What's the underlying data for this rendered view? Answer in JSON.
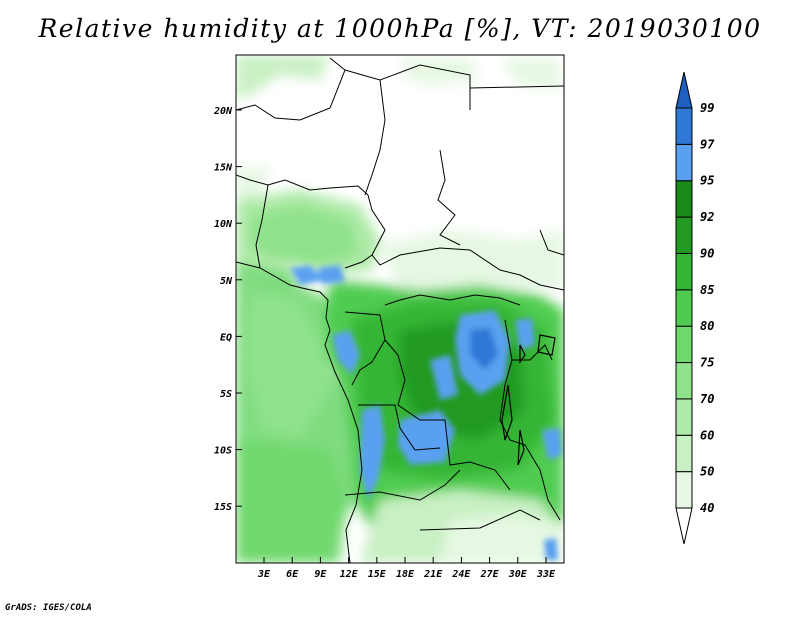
{
  "title": "Relative humidity at 1000hPa [%], VT: 2019030100",
  "credit": "GrADS: IGES/COLA",
  "map": {
    "lat_labels": [
      "20N",
      "15N",
      "10N",
      "5N",
      "EQ",
      "5S",
      "10S",
      "15S"
    ],
    "lon_labels": [
      "3E",
      "6E",
      "9E",
      "12E",
      "15E",
      "18E",
      "21E",
      "24E",
      "27E",
      "30E",
      "33E"
    ],
    "colors": {
      "land_dry": "#ffffff",
      "ocean": "#7fdc7f",
      "border": "#000000"
    }
  },
  "colorbar": {
    "levels": [
      "40",
      "50",
      "60",
      "70",
      "75",
      "80",
      "85",
      "90",
      "92",
      "95",
      "97",
      "99"
    ],
    "colors": [
      "#ffffff",
      "#e6f8e3",
      "#c9f0c4",
      "#aeeaa8",
      "#8fe28a",
      "#6fd86c",
      "#4fcc4f",
      "#35b535",
      "#229a22",
      "#178a17",
      "#5aa0f0",
      "#2f78d6",
      "#1e5fc0"
    ]
  }
}
